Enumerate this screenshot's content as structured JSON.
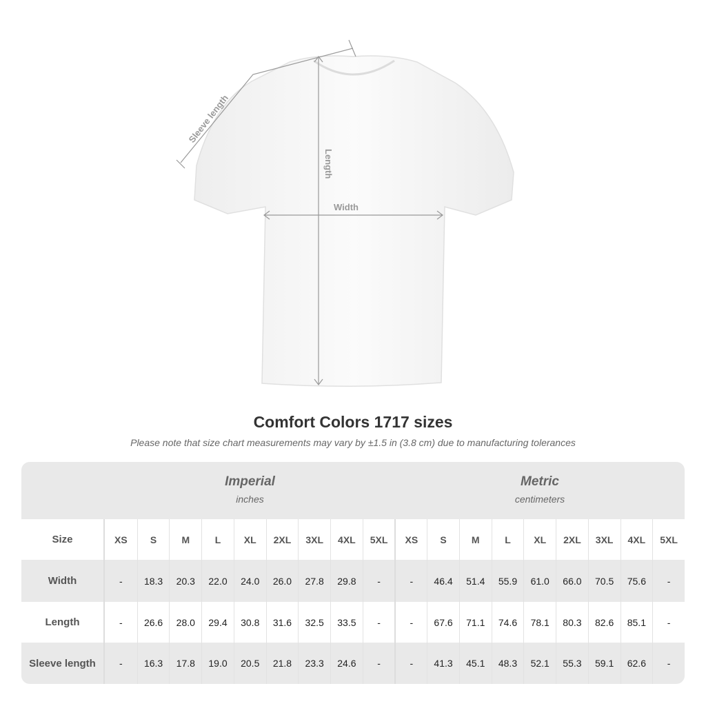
{
  "diagram": {
    "labels": {
      "sleeve": "Sleeve length",
      "length": "Length",
      "width": "Width"
    }
  },
  "title": "Comfort Colors 1717 sizes",
  "note": "Please note that size chart measurements may vary by ±1.5 in (3.8 cm) due to manufacturing tolerances",
  "table": {
    "imperial": {
      "name": "Imperial",
      "unit": "inches"
    },
    "metric": {
      "name": "Metric",
      "unit": "centimeters"
    },
    "size_label": "Size",
    "sizes": [
      "XS",
      "S",
      "M",
      "L",
      "XL",
      "2XL",
      "3XL",
      "4XL",
      "5XL"
    ],
    "rows": [
      {
        "label": "Width",
        "imperial": [
          "-",
          "18.3",
          "20.3",
          "22.0",
          "24.0",
          "26.0",
          "27.8",
          "29.8",
          "-"
        ],
        "metric": [
          "-",
          "46.4",
          "51.4",
          "55.9",
          "61.0",
          "66.0",
          "70.5",
          "75.6",
          "-"
        ]
      },
      {
        "label": "Length",
        "imperial": [
          "-",
          "26.6",
          "28.0",
          "29.4",
          "30.8",
          "31.6",
          "32.5",
          "33.5",
          "-"
        ],
        "metric": [
          "-",
          "67.6",
          "71.1",
          "74.6",
          "78.1",
          "80.3",
          "82.6",
          "85.1",
          "-"
        ]
      },
      {
        "label": "Sleeve length",
        "imperial": [
          "-",
          "16.3",
          "17.8",
          "19.0",
          "20.5",
          "21.8",
          "23.3",
          "24.6",
          "-"
        ],
        "metric": [
          "-",
          "41.3",
          "45.1",
          "48.3",
          "52.1",
          "55.3",
          "59.1",
          "62.6",
          "-"
        ]
      }
    ]
  }
}
